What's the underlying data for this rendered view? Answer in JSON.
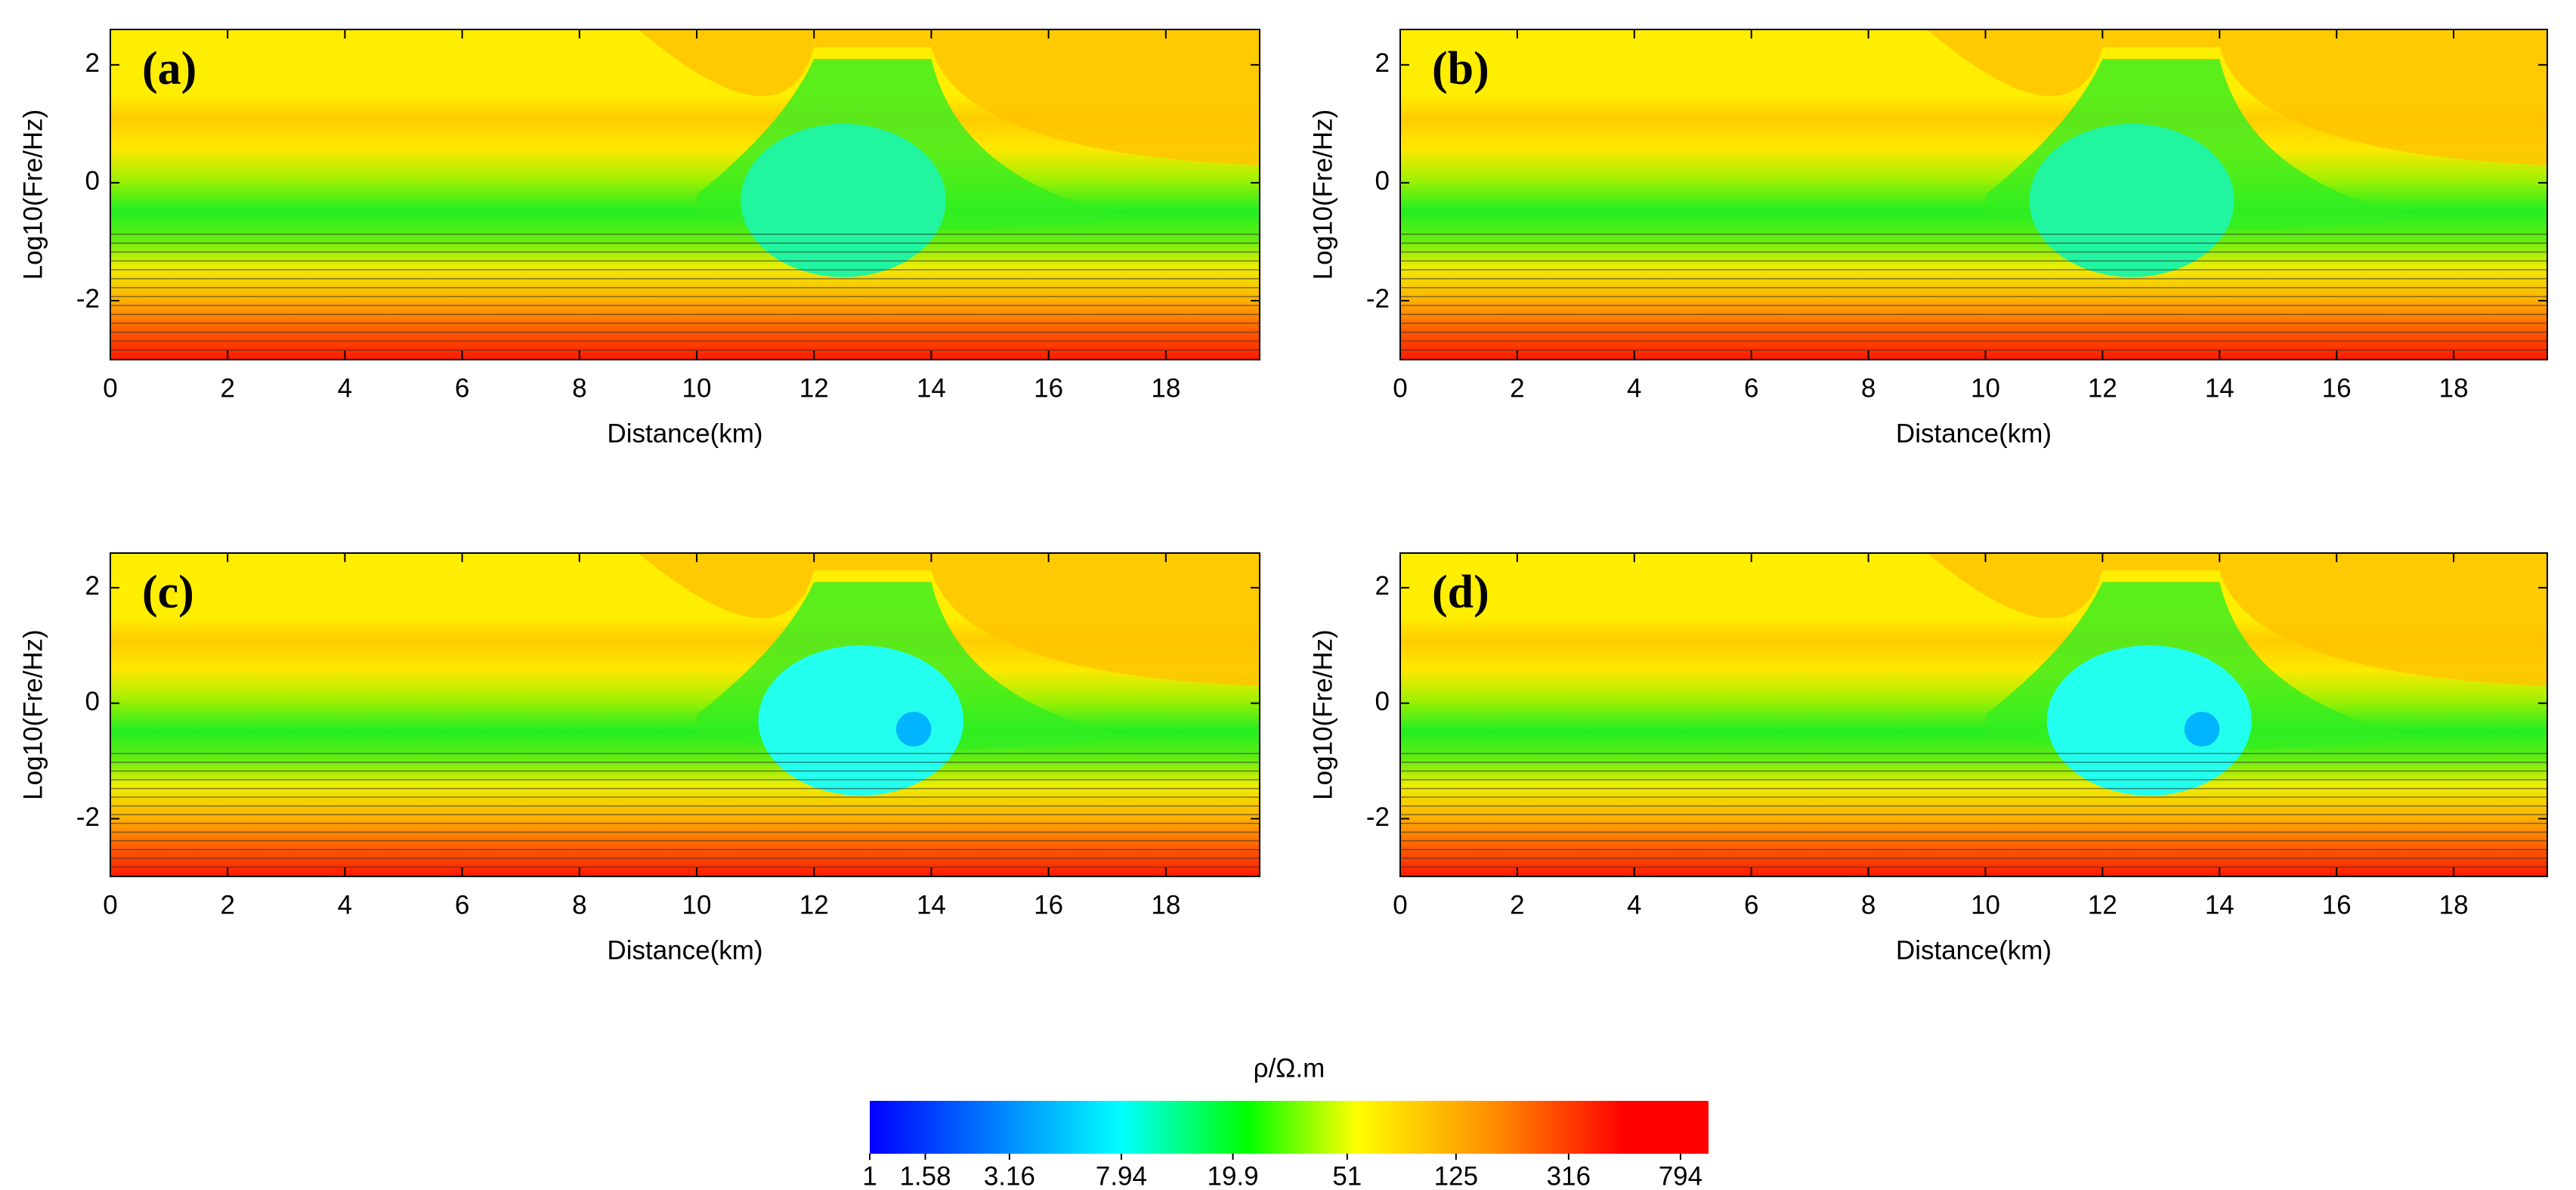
{
  "chart_data": [
    {
      "type": "contour",
      "panel_label": "(a)",
      "xlabel": "Distance(km)",
      "ylabel": "Log10(Fre/Hz)",
      "xlim": [
        0,
        19.6
      ],
      "ylim": [
        -3,
        2.6
      ],
      "xticks": [
        0,
        2,
        4,
        6,
        8,
        10,
        12,
        14,
        16,
        18
      ],
      "yticks": [
        -2,
        0,
        2
      ]
    },
    {
      "type": "contour",
      "panel_label": "(b)",
      "xlabel": "Distance(km)",
      "ylabel": "Log10(Fre/Hz)",
      "xlim": [
        0,
        19.6
      ],
      "ylim": [
        -3,
        2.6
      ],
      "xticks": [
        0,
        2,
        4,
        6,
        8,
        10,
        12,
        14,
        16,
        18
      ],
      "yticks": [
        -2,
        0,
        2
      ]
    },
    {
      "type": "contour",
      "panel_label": "(c)",
      "xlabel": "Distance(km)",
      "ylabel": "Log10(Fre/Hz)",
      "xlim": [
        0,
        19.6
      ],
      "ylim": [
        -3,
        2.6
      ],
      "xticks": [
        0,
        2,
        4,
        6,
        8,
        10,
        12,
        14,
        16,
        18
      ],
      "yticks": [
        -2,
        0,
        2
      ]
    },
    {
      "type": "contour",
      "panel_label": "(d)",
      "xlabel": "Distance(km)",
      "ylabel": "Log10(Fre/Hz)",
      "xlim": [
        0,
        19.6
      ],
      "ylim": [
        -3,
        2.6
      ],
      "xticks": [
        0,
        2,
        4,
        6,
        8,
        10,
        12,
        14,
        16,
        18
      ],
      "yticks": [
        -2,
        0,
        2
      ]
    }
  ],
  "colorbar": {
    "label": "ρ/Ω.m",
    "log": true,
    "lim": [
      1,
      1000
    ],
    "ticks": [
      1,
      1.58,
      3.16,
      7.94,
      19.9,
      51,
      125,
      316,
      794
    ]
  }
}
